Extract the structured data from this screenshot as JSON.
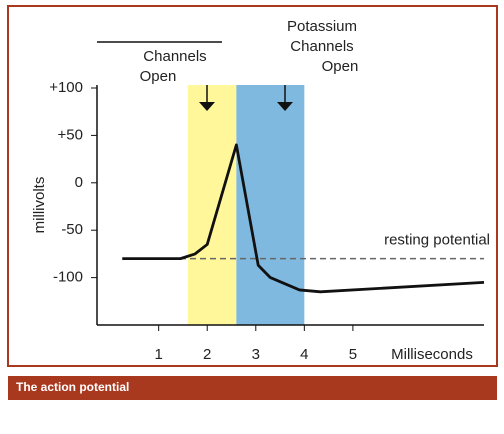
{
  "chart_data": {
    "type": "line",
    "x_label": "Milliseconds",
    "y_label": "millivolts",
    "x": [
      0.25,
      1.45,
      1.75,
      2.0,
      2.6,
      3.05,
      3.3,
      3.9,
      4.33,
      7.7
    ],
    "series": [
      {
        "color": "#111111",
        "values": [
          -80,
          -80,
          -75,
          -65,
          40,
          -87,
          -100,
          -113,
          -115,
          -105
        ]
      }
    ],
    "xlim": [
      -0.27,
      7.7
    ],
    "ylim": [
      -150,
      100
    ],
    "xticks": [
      1,
      2,
      3,
      4,
      5
    ],
    "yticks": [
      {
        "value": 100,
        "label": "+100"
      },
      {
        "value": 50,
        "label": "+50"
      },
      0,
      -50,
      -100
    ],
    "shaded_regions": [
      {
        "x": [
          1.6,
          2.6
        ],
        "color": "#fff799"
      },
      {
        "x": [
          2.6,
          4.0
        ],
        "color": "#7fb9df"
      }
    ],
    "reference_line": {
      "value": -80,
      "label": "resting potential"
    },
    "annotations": [
      "Channels",
      "Open",
      "Potassium",
      "Channels",
      "Open"
    ]
  },
  "caption": "The action potential"
}
